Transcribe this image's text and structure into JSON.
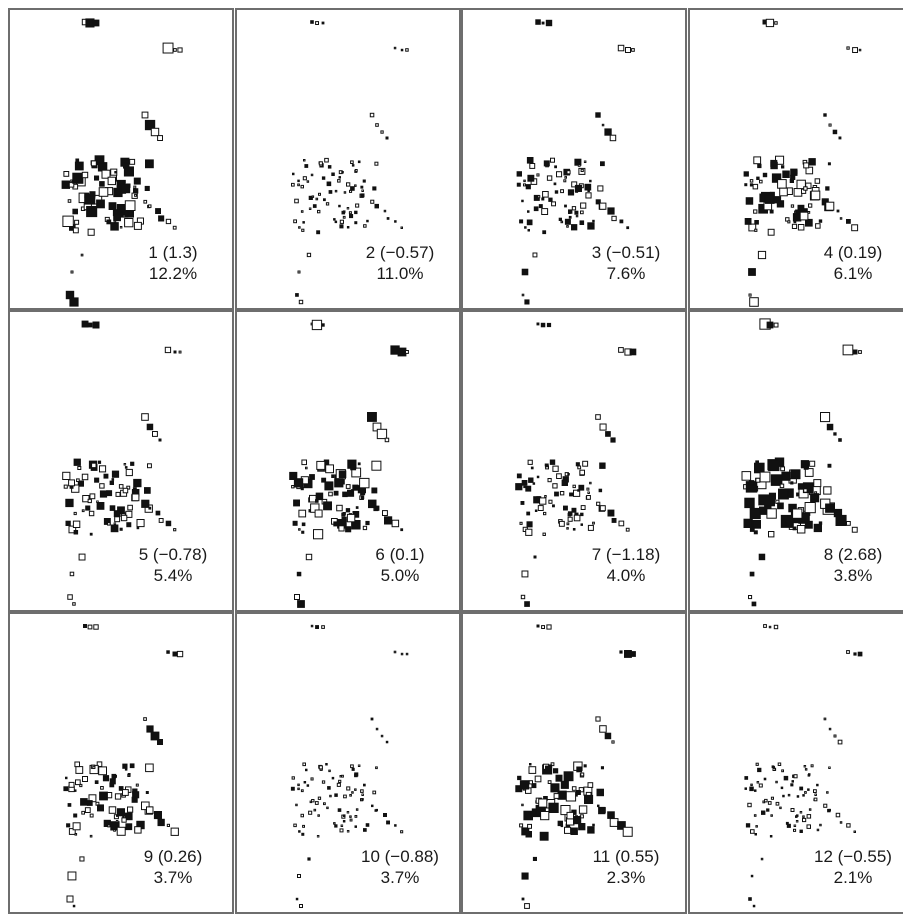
{
  "panels": [
    {
      "index": "1 (1.3)",
      "percent": "12.2%"
    },
    {
      "index": "2 (−0.57)",
      "percent": "11.0%"
    },
    {
      "index": "3 (−0.51)",
      "percent": "7.6%"
    },
    {
      "index": "4 (0.19)",
      "percent": "6.1%"
    },
    {
      "index": "5 (−0.78)",
      "percent": "5.4%"
    },
    {
      "index": "6 (0.1)",
      "percent": "5.0%"
    },
    {
      "index": "7 (−1.18)",
      "percent": "4.0%"
    },
    {
      "index": "8 (2.68)",
      "percent": "3.8%"
    },
    {
      "index": "9 (0.26)",
      "percent": "3.7%"
    },
    {
      "index": "10 (−0.88)",
      "percent": "3.7%"
    },
    {
      "index": "11 (0.55)",
      "percent": "2.3%"
    },
    {
      "index": "12 (−0.55)",
      "percent": "2.1%"
    }
  ]
}
